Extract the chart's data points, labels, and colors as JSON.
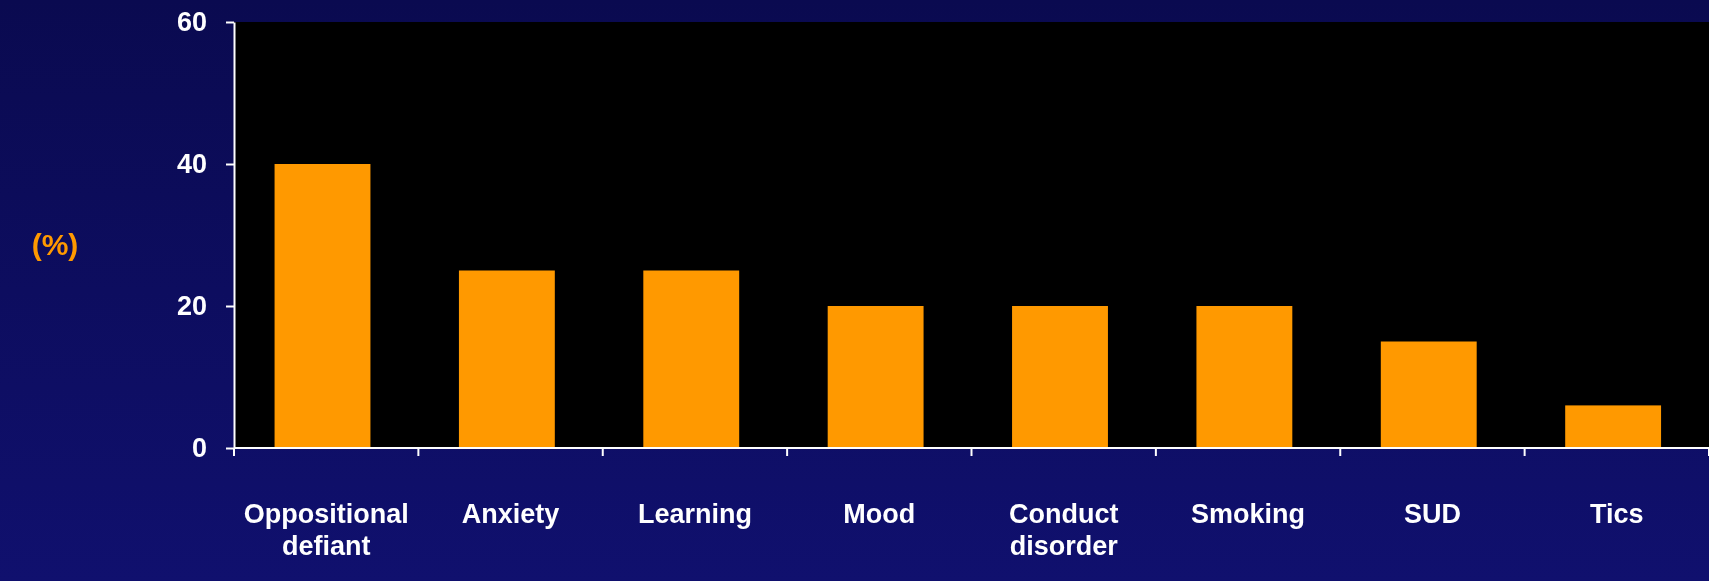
{
  "chart_data": {
    "type": "bar",
    "ylabel": "(%)",
    "categories": [
      "Oppositional defiant",
      "Anxiety",
      "Learning",
      "Mood",
      "Conduct disorder",
      "Smoking",
      "SUD",
      "Tics"
    ],
    "values": [
      40,
      25,
      25,
      20,
      20,
      20,
      15,
      6
    ],
    "color": "#ff9900",
    "ylim": [
      0,
      60
    ],
    "yticks": [
      0,
      20,
      40,
      60
    ],
    "grid": false
  }
}
